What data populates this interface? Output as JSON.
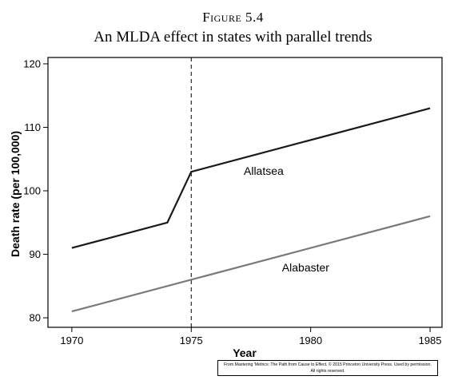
{
  "figure_label": "Figure 5.4",
  "credit": {
    "line1": "From Mastering 'Metrics: The Path from Cause to Effect. © 2015 Princeton University Press. Used by permission.",
    "line2": "All rights reserved."
  },
  "chart_data": {
    "type": "line",
    "title": "An MLDA effect in states with parallel trends",
    "xlabel": "Year",
    "ylabel": "Death rate (per 100,000)",
    "xlim": [
      1969,
      1985.5
    ],
    "ylim": [
      78.5,
      121
    ],
    "xticks": [
      1970,
      1975,
      1980,
      1985
    ],
    "yticks": [
      80,
      90,
      100,
      110,
      120
    ],
    "grid": false,
    "vline": {
      "x": 1975,
      "style": "dashed"
    },
    "series": [
      {
        "name": "Allatsea",
        "color": "#1a1a1a",
        "x": [
          1970,
          1974,
          1975,
          1985
        ],
        "y": [
          91,
          95,
          103,
          113
        ]
      },
      {
        "name": "Alabaster",
        "color": "#7a7a7a",
        "x": [
          1970,
          1985
        ],
        "y": [
          81,
          96
        ]
      }
    ],
    "labels": [
      {
        "text": "Allatsea",
        "x": 1977.2,
        "y": 102.5
      },
      {
        "text": "Alabaster",
        "x": 1978.8,
        "y": 87.3
      }
    ]
  }
}
